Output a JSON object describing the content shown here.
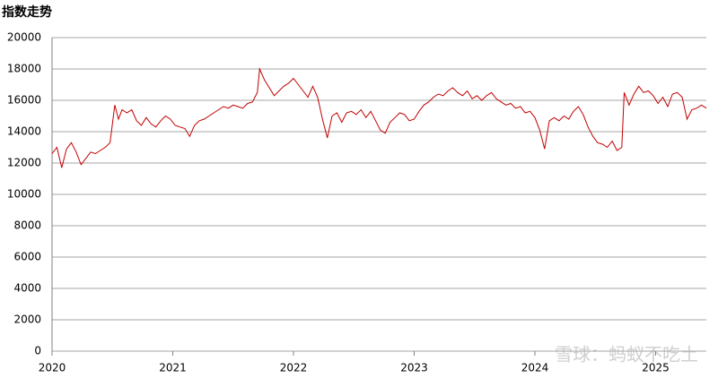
{
  "chart_data": {
    "type": "line",
    "title": "指数走势",
    "annotation": "雪球：蚂蚁不吃土",
    "x": [
      2020.0,
      2020.04,
      2020.08,
      2020.12,
      2020.16,
      2020.2,
      2020.24,
      2020.28,
      2020.32,
      2020.36,
      2020.4,
      2020.44,
      2020.48,
      2020.52,
      2020.55,
      2020.58,
      2020.62,
      2020.66,
      2020.7,
      2020.74,
      2020.78,
      2020.82,
      2020.86,
      2020.9,
      2020.94,
      2020.98,
      2021.02,
      2021.06,
      2021.1,
      2021.14,
      2021.18,
      2021.22,
      2021.26,
      2021.3,
      2021.34,
      2021.38,
      2021.42,
      2021.46,
      2021.5,
      2021.54,
      2021.58,
      2021.62,
      2021.66,
      2021.7,
      2021.72,
      2021.76,
      2021.8,
      2021.84,
      2021.88,
      2021.92,
      2021.96,
      2022.0,
      2022.04,
      2022.08,
      2022.12,
      2022.16,
      2022.2,
      2022.24,
      2022.28,
      2022.32,
      2022.36,
      2022.4,
      2022.44,
      2022.48,
      2022.52,
      2022.56,
      2022.6,
      2022.64,
      2022.68,
      2022.72,
      2022.76,
      2022.8,
      2022.84,
      2022.88,
      2022.92,
      2022.96,
      2023.0,
      2023.04,
      2023.08,
      2023.12,
      2023.16,
      2023.2,
      2023.24,
      2023.28,
      2023.32,
      2023.36,
      2023.4,
      2023.44,
      2023.48,
      2023.52,
      2023.56,
      2023.6,
      2023.64,
      2023.68,
      2023.72,
      2023.76,
      2023.8,
      2023.84,
      2023.88,
      2023.92,
      2023.96,
      2024.0,
      2024.04,
      2024.08,
      2024.12,
      2024.16,
      2024.2,
      2024.24,
      2024.28,
      2024.32,
      2024.36,
      2024.4,
      2024.44,
      2024.48,
      2024.52,
      2024.56,
      2024.6,
      2024.64,
      2024.68,
      2024.72,
      2024.74,
      2024.78,
      2024.82,
      2024.86,
      2024.9,
      2024.94,
      2024.98,
      2025.02,
      2025.06,
      2025.1,
      2025.14,
      2025.18,
      2025.22,
      2025.26,
      2025.3,
      2025.34,
      2025.38,
      2025.42
    ],
    "series": [
      {
        "color": "#c00000",
        "values": [
          12600,
          13000,
          11700,
          12900,
          13300,
          12700,
          11900,
          12300,
          12700,
          12600,
          12800,
          13000,
          13300,
          15700,
          14800,
          15400,
          15200,
          15400,
          14700,
          14400,
          14900,
          14500,
          14300,
          14700,
          15000,
          14800,
          14400,
          14300,
          14200,
          13700,
          14400,
          14700,
          14800,
          15000,
          15200,
          15400,
          15600,
          15500,
          15700,
          15600,
          15500,
          15800,
          15900,
          16500,
          18000,
          17300,
          16800,
          16300,
          16600,
          16900,
          17100,
          17400,
          17000,
          16600,
          16200,
          16900,
          16200,
          14800,
          13600,
          15000,
          15200,
          14600,
          15200,
          15300,
          15100,
          15400,
          14900,
          15300,
          14700,
          14100,
          13900,
          14600,
          14900,
          15200,
          15100,
          14700,
          14800,
          15300,
          15700,
          15900,
          16200,
          16400,
          16300,
          16600,
          16800,
          16500,
          16300,
          16600,
          16100,
          16300,
          16000,
          16300,
          16500,
          16100,
          15900,
          15700,
          15800,
          15500,
          15600,
          15200,
          15300,
          14900,
          14100,
          12900,
          14700,
          14900,
          14700,
          15000,
          14800,
          15300,
          15600,
          15100,
          14300,
          13700,
          13300,
          13200,
          13000,
          13400,
          12800,
          13000,
          16500,
          15700,
          16400,
          16900,
          16500,
          16600,
          16300,
          15800,
          16200,
          15600,
          16400,
          16500,
          16200,
          14800,
          15400,
          15500,
          15700,
          15500
        ]
      }
    ],
    "xlim": [
      2020,
      2025.42
    ],
    "xticks": [
      2020,
      2021,
      2022,
      2023,
      2024,
      2025
    ],
    "ylim": [
      0,
      20000
    ],
    "yticks": [
      0,
      2000,
      4000,
      6000,
      8000,
      10000,
      12000,
      14000,
      16000,
      18000,
      20000
    ],
    "grid": true
  }
}
